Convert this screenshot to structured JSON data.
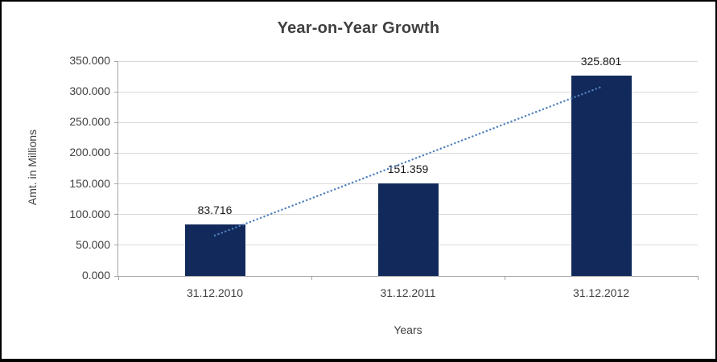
{
  "chart_data": {
    "type": "bar",
    "title": "Year-on-Year Growth",
    "categories": [
      "31.12.2010",
      "31.12.2011",
      "31.12.2012"
    ],
    "values": [
      83.716,
      151.359,
      325.801
    ],
    "data_labels": [
      "83.716",
      "151.359",
      "325.801"
    ],
    "xlabel": "Years",
    "ylabel": "Amt. in Millions",
    "ylim": [
      0,
      350
    ],
    "ytick_step": 50,
    "ytick_decimals": 3,
    "ytick_labels": [
      "0.000",
      "50.000",
      "100.000",
      "150.000",
      "200.000",
      "250.000",
      "300.000",
      "350.000"
    ],
    "grid": "horizontal",
    "legend": "none",
    "trendline": {
      "type": "linear",
      "style": "dotted",
      "color": "#4F81BD"
    },
    "colors": {
      "bar": "#12295B",
      "gridline": "#D9D9D9",
      "axis": "#A6A6A6",
      "text": "#404040",
      "title": "#404040",
      "data_label": "#1a1a1a",
      "background": "#FFFFFF"
    }
  }
}
